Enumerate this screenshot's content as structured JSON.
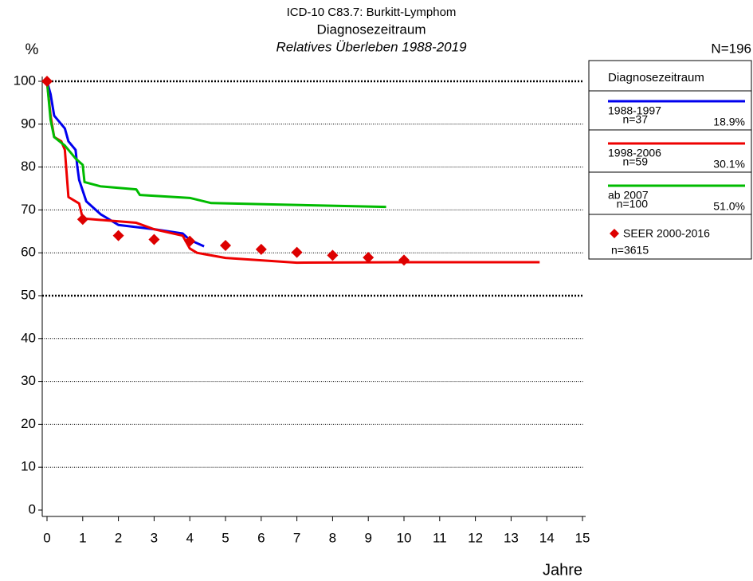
{
  "chart_data": {
    "type": "line",
    "title": "ICD-10 C83.7: Burkitt-Lymphom",
    "subtitle": "Diagnosezeitraum",
    "subtitle2": "Relatives Überleben 1988-2019",
    "y_label": "%",
    "x_label": "Jahre",
    "total_label": "N=196",
    "legend_title": "Diagnosezeitraum",
    "xlim": [
      0,
      15
    ],
    "xticks": [
      0,
      1,
      2,
      3,
      4,
      5,
      6,
      7,
      8,
      9,
      10,
      11,
      12,
      13,
      14,
      15
    ],
    "ylim": [
      0,
      100
    ],
    "yticks": [
      0,
      10,
      20,
      30,
      40,
      50,
      60,
      70,
      80,
      90,
      100
    ],
    "grid": true,
    "bold_grid_at": [
      50,
      100
    ],
    "series": [
      {
        "name": "1988-1997",
        "n_label": "n=37",
        "rate_label": "18.9%",
        "color": "#0000ee",
        "x": [
          0,
          0.1,
          0.2,
          0.4,
          0.5,
          0.6,
          0.8,
          0.85,
          0.9,
          1.1,
          1.5,
          2,
          3,
          3.8,
          4,
          4.4
        ],
        "values": [
          100,
          97,
          92,
          90,
          89,
          86,
          84,
          80,
          77,
          72,
          69,
          66.5,
          65.5,
          64.5,
          63,
          61.5
        ]
      },
      {
        "name": "1998-2006",
        "n_label": "n=59",
        "rate_label": "30.1%",
        "color": "#ee0000",
        "x": [
          0,
          0.1,
          0.2,
          0.4,
          0.5,
          0.6,
          0.9,
          1,
          2.5,
          3,
          3.8,
          4,
          4.2,
          5,
          7,
          10,
          13.8
        ],
        "values": [
          100,
          92,
          87,
          86,
          84,
          73,
          71.5,
          68,
          67,
          65.5,
          64,
          61,
          60,
          58.8,
          57.7,
          57.8,
          57.8
        ]
      },
      {
        "name": "ab 2007",
        "n_label": "n=100",
        "rate_label": "51.0%",
        "color": "#00bb00",
        "x": [
          0,
          0.1,
          0.2,
          0.5,
          0.8,
          1,
          1.05,
          1.5,
          2.5,
          2.6,
          4,
          4.6,
          9.5
        ],
        "values": [
          100,
          91,
          87,
          85,
          82,
          80.5,
          76.5,
          75.5,
          74.8,
          73.5,
          72.8,
          71.6,
          70.7
        ]
      },
      {
        "name": "SEER 2000-2016",
        "n_label": "n=3615",
        "color": "#dd0000",
        "marker": "diamond",
        "x": [
          0,
          1,
          2,
          3,
          4,
          5,
          6,
          7,
          8,
          9,
          10
        ],
        "values": [
          100,
          67.8,
          64,
          63.1,
          62.7,
          61.7,
          60.8,
          60.1,
          59.4,
          58.9,
          58.3
        ]
      }
    ]
  }
}
